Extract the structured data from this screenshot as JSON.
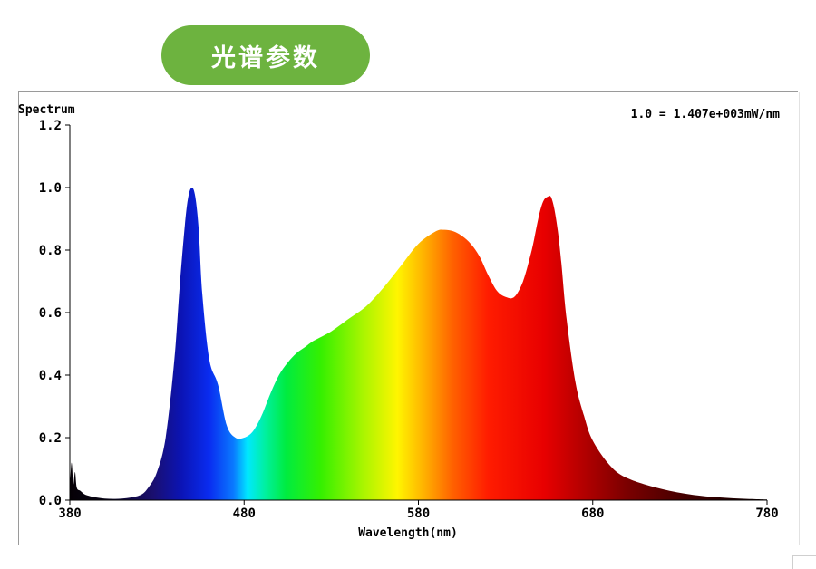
{
  "header": {
    "badge_text": "光谱参数"
  },
  "colors": {
    "badge_bg": "#6db33f",
    "badge_text": "#ffffff"
  },
  "chart_data": {
    "type": "area",
    "title": "",
    "ylabel": "Spectrum",
    "xlabel": "Wavelength(nm)",
    "annotation": "1.0 = 1.407e+003mW/nm",
    "xlim": [
      380,
      780
    ],
    "ylim": [
      0,
      1.2
    ],
    "x_ticks": [
      "380",
      "480",
      "580",
      "680",
      "780"
    ],
    "y_ticks": [
      "0.0",
      "0.2",
      "0.4",
      "0.6",
      "0.8",
      "1.0",
      "1.2"
    ],
    "grid": false,
    "fill": "visible-spectrum gradient",
    "x": [
      380,
      381,
      382,
      383,
      384,
      386,
      390,
      400,
      410,
      420,
      425,
      430,
      435,
      440,
      443,
      446,
      448,
      450,
      452,
      454,
      456,
      460,
      465,
      470,
      475,
      480,
      485,
      490,
      495,
      500,
      505,
      510,
      515,
      520,
      530,
      540,
      550,
      560,
      570,
      580,
      590,
      595,
      600,
      605,
      610,
      615,
      620,
      625,
      630,
      635,
      640,
      645,
      648,
      650,
      652,
      654,
      656,
      658,
      660,
      662,
      665,
      670,
      675,
      680,
      690,
      700,
      720,
      740,
      760,
      780
    ],
    "y": [
      0.04,
      0.12,
      0.05,
      0.09,
      0.04,
      0.03,
      0.015,
      0.005,
      0.005,
      0.015,
      0.04,
      0.09,
      0.2,
      0.45,
      0.68,
      0.88,
      0.97,
      1.0,
      0.97,
      0.86,
      0.66,
      0.45,
      0.37,
      0.24,
      0.2,
      0.2,
      0.22,
      0.27,
      0.34,
      0.4,
      0.44,
      0.47,
      0.49,
      0.51,
      0.54,
      0.58,
      0.62,
      0.68,
      0.75,
      0.82,
      0.86,
      0.865,
      0.86,
      0.845,
      0.82,
      0.78,
      0.72,
      0.67,
      0.65,
      0.65,
      0.7,
      0.8,
      0.88,
      0.93,
      0.96,
      0.97,
      0.97,
      0.93,
      0.86,
      0.76,
      0.58,
      0.38,
      0.27,
      0.19,
      0.11,
      0.07,
      0.035,
      0.015,
      0.006,
      0.002
    ]
  }
}
